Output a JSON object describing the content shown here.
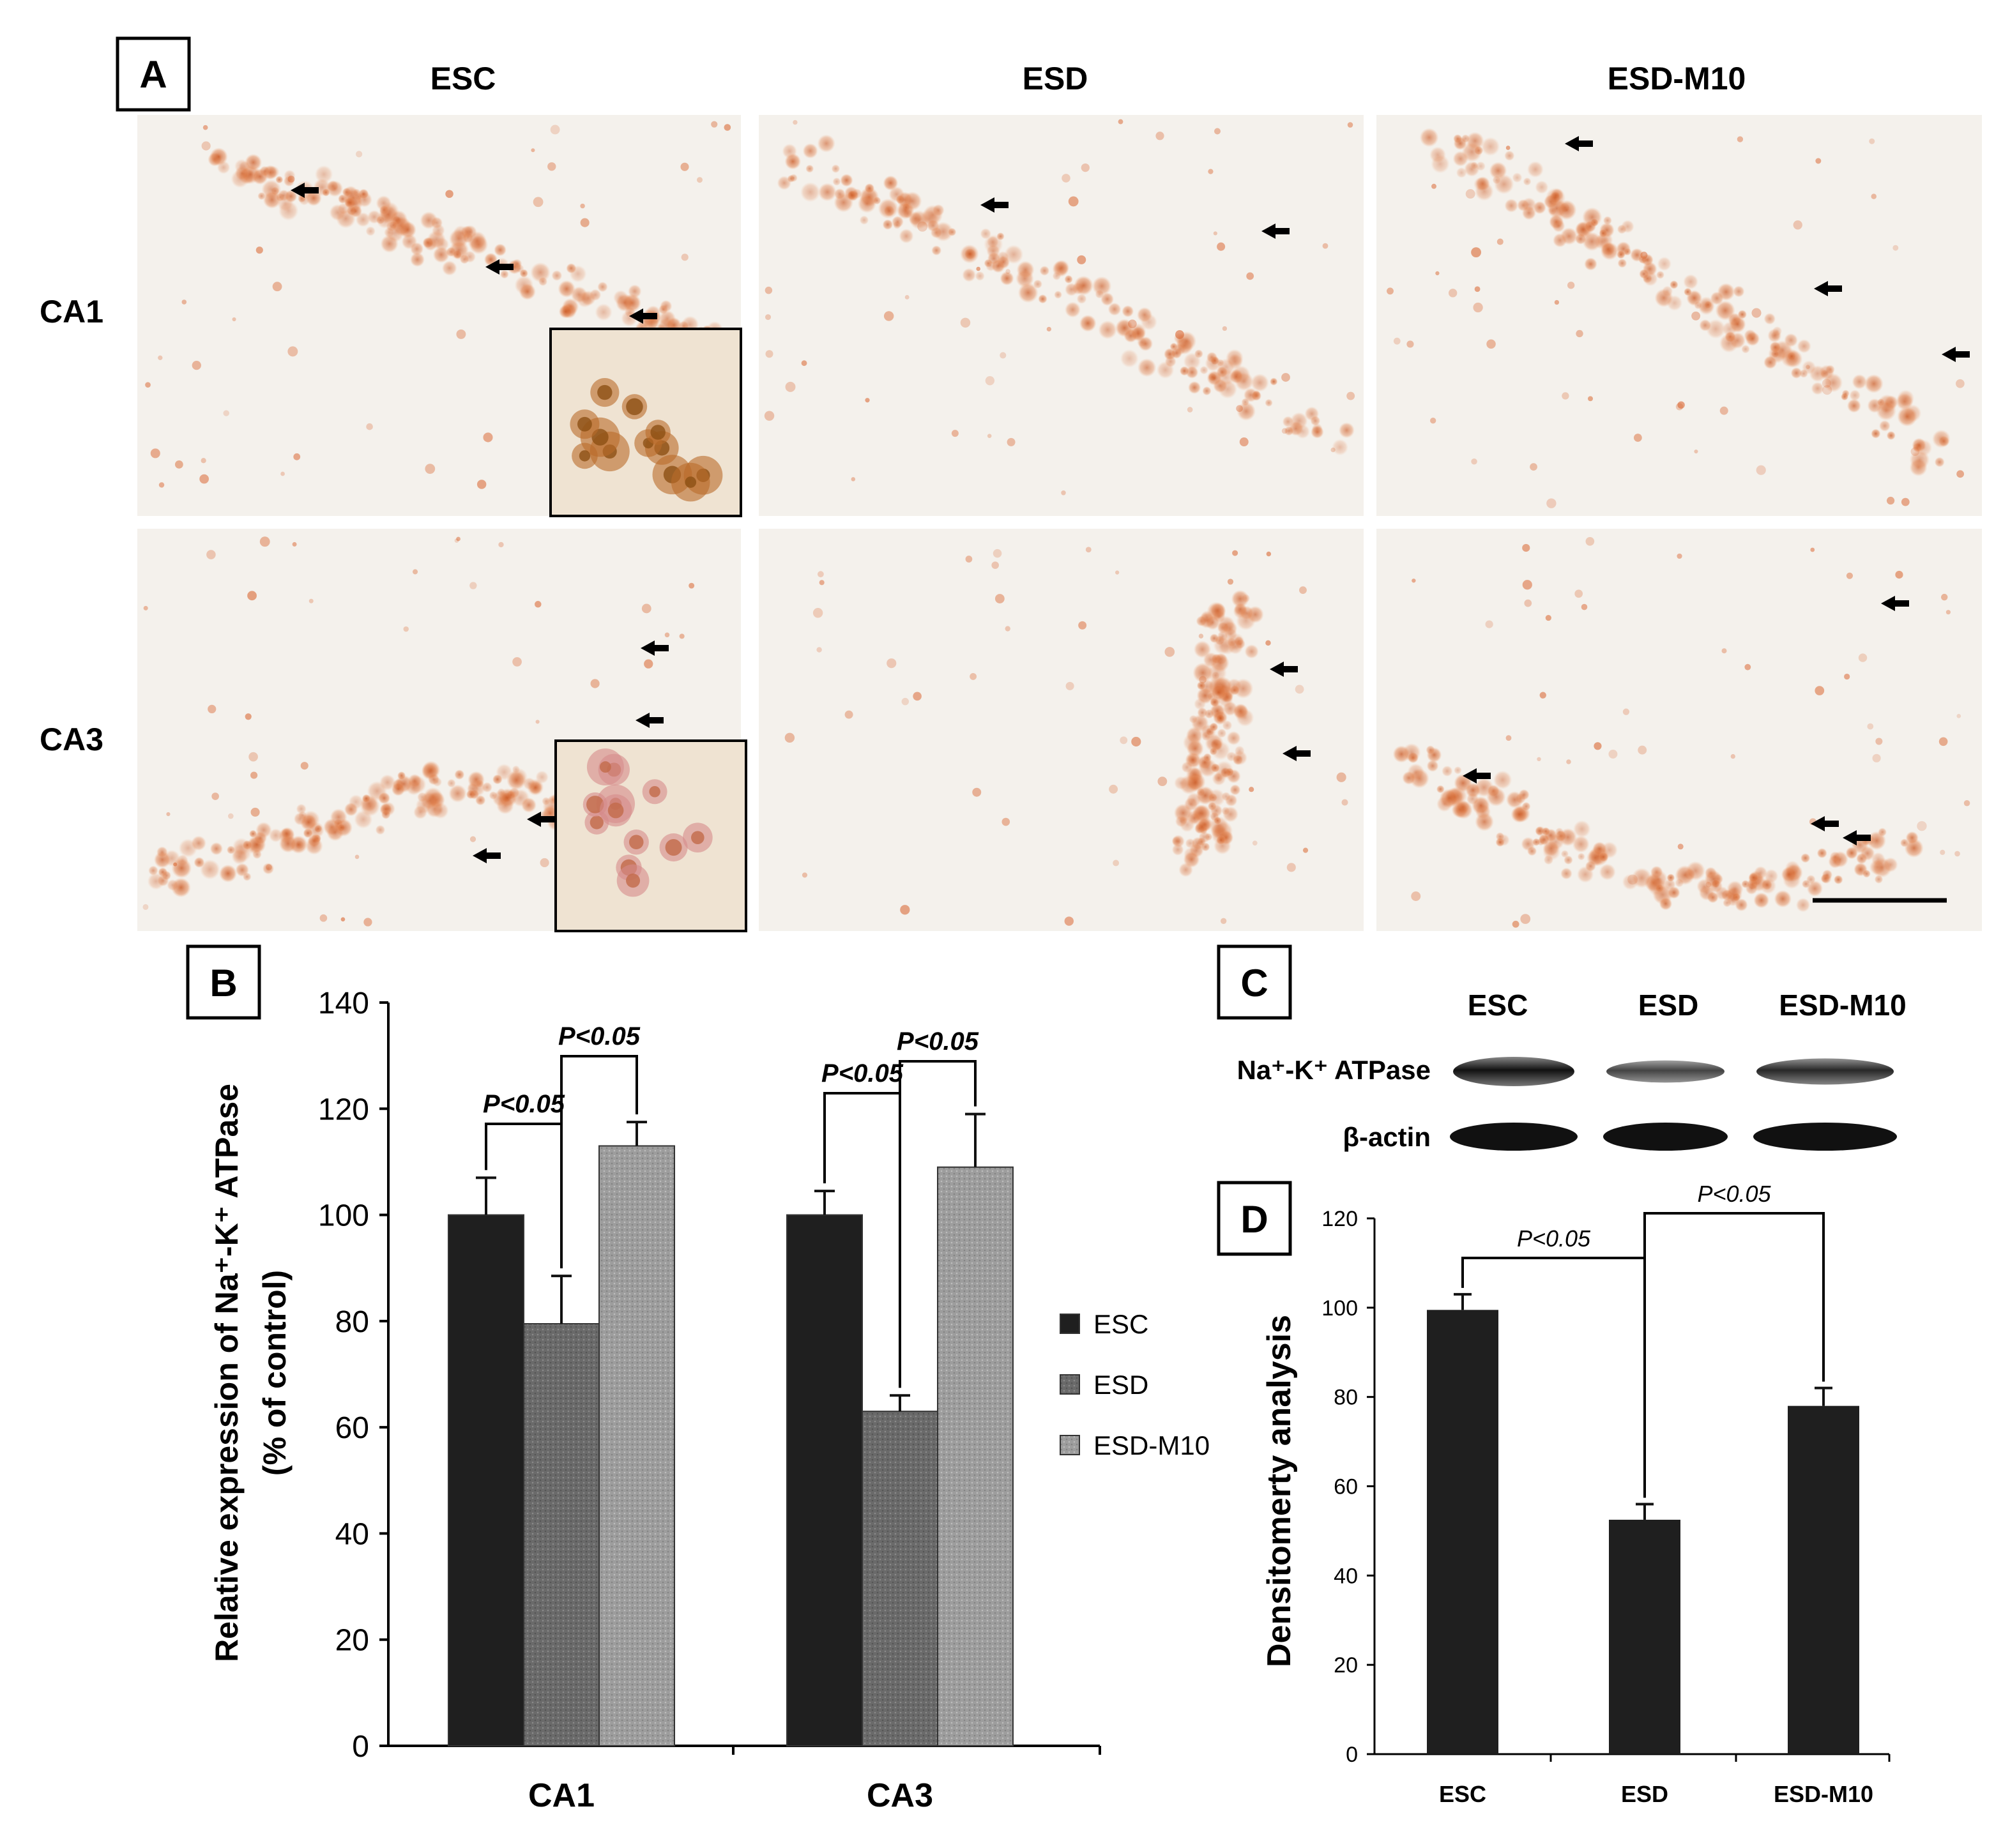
{
  "panel_labels": {
    "a": "A",
    "b": "B",
    "c": "C",
    "d": "D"
  },
  "panel_a": {
    "columns": [
      "ESC",
      "ESD",
      "ESD-M10"
    ],
    "rows": [
      "CA1",
      "CA3"
    ]
  },
  "panel_c": {
    "lanes": [
      "ESC",
      "ESD",
      "ESD-M10"
    ],
    "bands": [
      "Na⁺-K⁺ ATPase",
      "β-actin"
    ],
    "band_intensity": {
      "atpase": [
        1.0,
        0.53,
        0.79
      ],
      "actin": [
        1.0,
        1.0,
        1.0
      ]
    }
  },
  "colors": {
    "esc": "#1f1f1f",
    "esd": "#6a6a6a",
    "esdm10": "#9d9d9d",
    "stain": "#d9652f"
  },
  "chart_data": [
    {
      "id": "B",
      "type": "bar",
      "categories": [
        "CA1",
        "CA3"
      ],
      "series": [
        {
          "name": "ESC",
          "values": [
            100,
            100
          ],
          "errors": [
            7,
            4.5
          ]
        },
        {
          "name": "ESD",
          "values": [
            79.5,
            63
          ],
          "errors": [
            9,
            3
          ]
        },
        {
          "name": "ESD-M10",
          "values": [
            113,
            109
          ],
          "errors": [
            4.5,
            10
          ]
        }
      ],
      "ylabel": [
        "Relative expression of Na⁺-K⁺ ATPase",
        "(% of control)"
      ],
      "ylim": [
        0,
        140
      ],
      "yticks": [
        0,
        20,
        40,
        60,
        80,
        100,
        120,
        140
      ],
      "annotations": [
        {
          "group": 0,
          "from": 0,
          "to": 1,
          "label": "P<0.05"
        },
        {
          "group": 0,
          "from": 1,
          "to": 2,
          "label": "P<0.05"
        },
        {
          "group": 1,
          "from": 0,
          "to": 1,
          "label": "P<0.05"
        },
        {
          "group": 1,
          "from": 1,
          "to": 2,
          "label": "P<0.05"
        }
      ],
      "legend": [
        "ESC",
        "ESD",
        "ESD-M10"
      ],
      "grid": false
    },
    {
      "id": "D",
      "type": "bar",
      "categories": [
        "ESC",
        "ESD",
        "ESD-M10"
      ],
      "values": [
        99.5,
        52.5,
        78
      ],
      "errors": [
        3.5,
        3.5,
        4
      ],
      "ylabel": "Densitomerty analysis",
      "ylim": [
        0,
        120
      ],
      "yticks": [
        0,
        20,
        40,
        60,
        80,
        100,
        120
      ],
      "annotations": [
        {
          "from": 0,
          "to": 1,
          "label": "P<0.05"
        },
        {
          "from": 1,
          "to": 2,
          "label": "P<0.05"
        }
      ],
      "grid": false
    }
  ]
}
